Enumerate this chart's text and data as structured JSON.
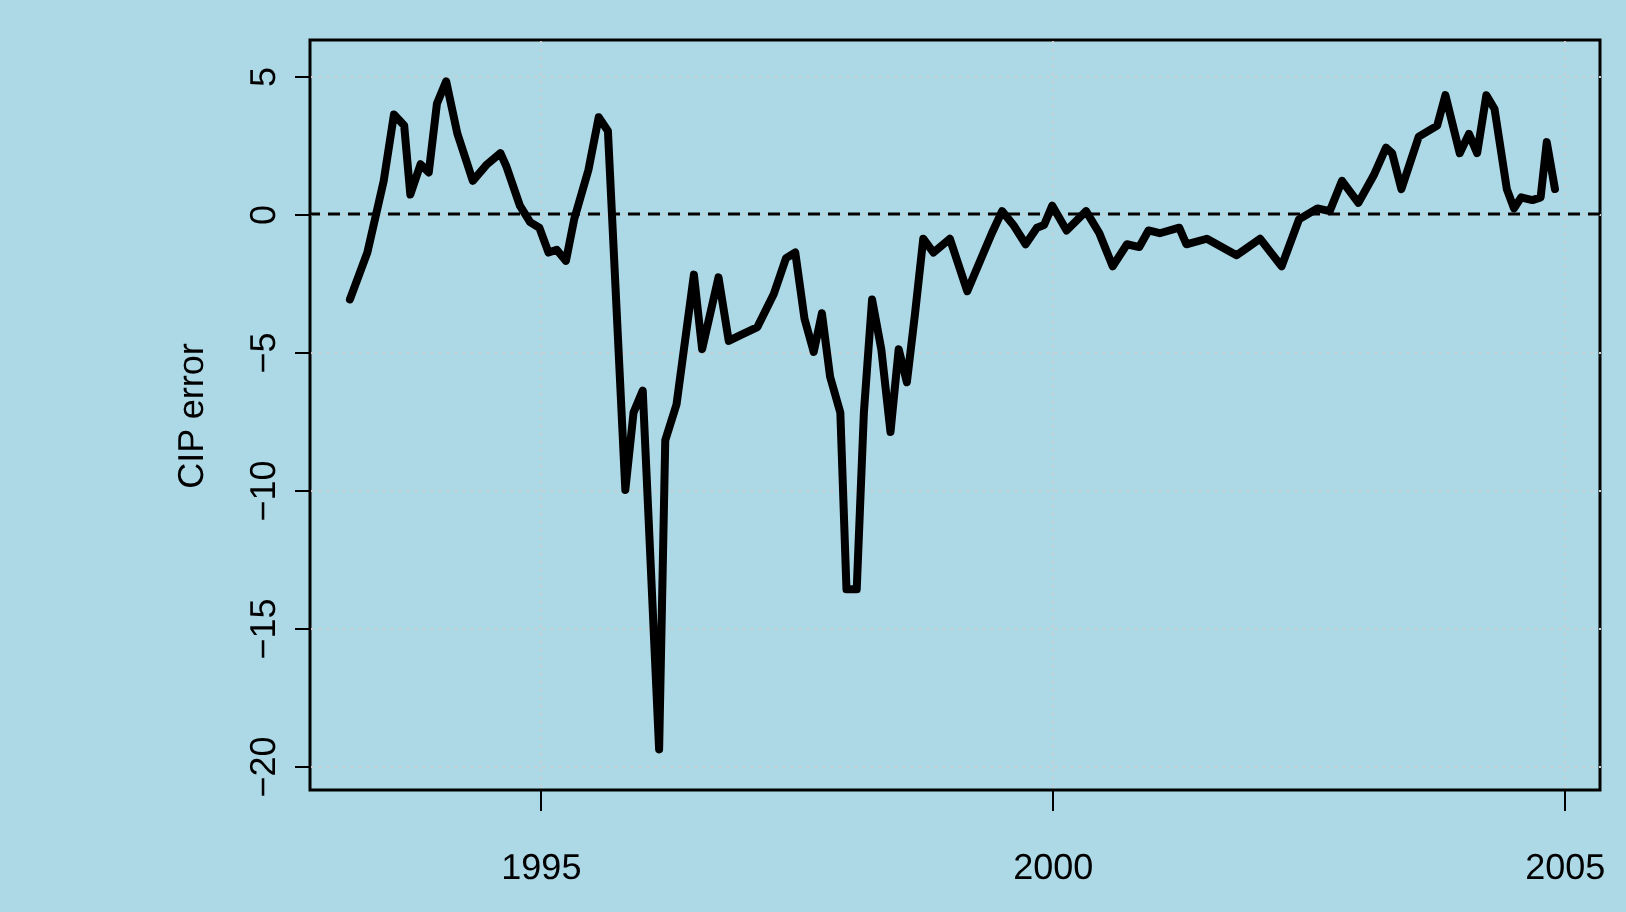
{
  "chart_data": {
    "type": "line",
    "ylabel": "CIP error",
    "x": [
      1993.14,
      1993.31,
      1993.47,
      1993.57,
      1993.67,
      1993.73,
      1993.83,
      1993.91,
      1993.99,
      1994.08,
      1994.19,
      1994.34,
      1994.48,
      1994.61,
      1994.67,
      1994.8,
      1994.9,
      1994.99,
      1995.08,
      1995.16,
      1995.25,
      1995.33,
      1995.47,
      1995.57,
      1995.66,
      1995.83,
      1995.91,
      1996.0,
      1996.16,
      1996.22,
      1996.33,
      1996.5,
      1996.58,
      1996.74,
      1996.84,
      1996.95,
      1997.12,
      1997.28,
      1997.4,
      1997.49,
      1997.58,
      1997.67,
      1997.75,
      1997.83,
      1997.93,
      1997.99,
      1998.09,
      1998.16,
      1998.24,
      1998.33,
      1998.42,
      1998.5,
      1998.58,
      1998.66,
      1998.74,
      1998.84,
      1999.0,
      1999.17,
      1999.33,
      1999.41,
      1999.51,
      1999.62,
      1999.74,
      1999.85,
      1999.92,
      2000.0,
      2000.14,
      2000.33,
      2000.46,
      2000.59,
      2000.73,
      2000.85,
      2000.94,
      2001.05,
      2001.24,
      2001.31,
      2001.51,
      2001.8,
      2002.03,
      2002.24,
      2002.41,
      2002.59,
      2002.71,
      2002.83,
      2002.99,
      2003.14,
      2003.26,
      2003.32,
      2003.41,
      2003.58,
      2003.67,
      2003.76,
      2003.84,
      2003.98,
      2004.07,
      2004.15,
      2004.24,
      2004.32,
      2004.44,
      2004.51,
      2004.58,
      2004.69,
      2004.77,
      2004.83,
      2004.91
    ],
    "series": [
      {
        "color": "#000000",
        "values": [
          -3.1,
          -1.4,
          1.2,
          3.6,
          3.2,
          0.7,
          1.8,
          1.5,
          4.0,
          4.8,
          2.9,
          1.2,
          1.8,
          2.2,
          1.7,
          0.3,
          -0.3,
          -0.5,
          -1.4,
          -1.3,
          -1.7,
          -0.2,
          1.6,
          3.5,
          3.0,
          -10.0,
          -7.2,
          -6.4,
          -19.4,
          -8.2,
          -6.9,
          -2.2,
          -4.9,
          -2.3,
          -4.6,
          -4.4,
          -4.1,
          -2.9,
          -1.6,
          -1.4,
          -3.8,
          -5.0,
          -3.6,
          -5.9,
          -7.2,
          -13.6,
          -13.6,
          -7.2,
          -3.1,
          -4.9,
          -7.9,
          -4.9,
          -6.1,
          -3.6,
          -0.9,
          -1.4,
          -0.9,
          -2.8,
          -1.4,
          -0.7,
          0.1,
          -0.4,
          -1.1,
          -0.5,
          -0.4,
          0.3,
          -0.6,
          0.1,
          -0.7,
          -1.9,
          -1.1,
          -1.2,
          -0.6,
          -0.7,
          -0.5,
          -1.1,
          -0.9,
          -1.5,
          -0.9,
          -1.9,
          -0.2,
          0.2,
          0.1,
          1.2,
          0.4,
          1.4,
          2.4,
          2.2,
          0.9,
          2.8,
          3.0,
          3.2,
          4.3,
          2.2,
          2.9,
          2.2,
          4.3,
          3.8,
          0.9,
          0.2,
          0.6,
          0.5,
          0.6,
          2.6,
          0.9
        ]
      }
    ],
    "xlim": [
      1992.75,
      2005.35
    ],
    "xticks": [
      1995,
      2000,
      2005
    ],
    "ylim": [
      -20.87,
      6.3
    ],
    "yticks": [
      5,
      0,
      -5,
      -10,
      -15,
      -20
    ],
    "grid": true,
    "line_style": "solid",
    "marker": "none",
    "ref_lines": [
      {
        "axis": "y",
        "value": 0,
        "color": "#000000",
        "line_style": "dashed"
      }
    ]
  }
}
